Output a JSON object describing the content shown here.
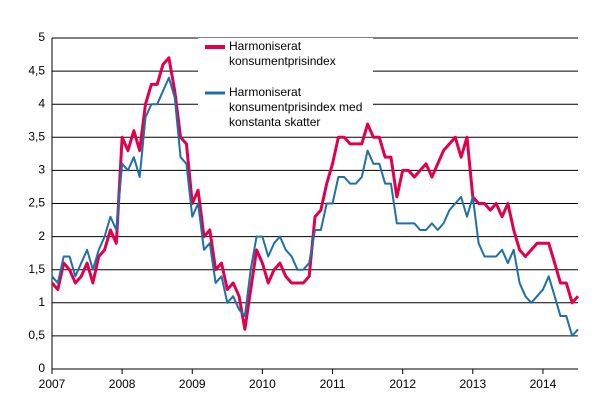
{
  "chart_data": {
    "type": "line",
    "x": [
      2007,
      2007.083,
      2007.167,
      2007.25,
      2007.333,
      2007.417,
      2007.5,
      2007.583,
      2007.667,
      2007.75,
      2007.833,
      2007.917,
      2008,
      2008.083,
      2008.167,
      2008.25,
      2008.333,
      2008.417,
      2008.5,
      2008.583,
      2008.667,
      2008.75,
      2008.833,
      2008.917,
      2009,
      2009.083,
      2009.167,
      2009.25,
      2009.333,
      2009.417,
      2009.5,
      2009.583,
      2009.667,
      2009.75,
      2009.833,
      2009.917,
      2010,
      2010.083,
      2010.167,
      2010.25,
      2010.333,
      2010.417,
      2010.5,
      2010.583,
      2010.667,
      2010.75,
      2010.833,
      2010.917,
      2011,
      2011.083,
      2011.167,
      2011.25,
      2011.333,
      2011.417,
      2011.5,
      2011.583,
      2011.667,
      2011.75,
      2011.833,
      2011.917,
      2012,
      2012.083,
      2012.167,
      2012.25,
      2012.333,
      2012.417,
      2012.5,
      2012.583,
      2012.667,
      2012.75,
      2012.833,
      2012.917,
      2013,
      2013.083,
      2013.167,
      2013.25,
      2013.333,
      2013.417,
      2013.5,
      2013.583,
      2013.667,
      2013.75,
      2013.833,
      2013.917,
      2014,
      2014.083,
      2014.167,
      2014.25,
      2014.333,
      2014.417,
      2014.5
    ],
    "series": [
      {
        "name": "Harmoniserat konsumentprisindex",
        "color": "#e0004d",
        "width": 3,
        "values": [
          1.3,
          1.2,
          1.6,
          1.5,
          1.3,
          1.4,
          1.6,
          1.3,
          1.7,
          1.8,
          2.1,
          1.9,
          3.5,
          3.3,
          3.6,
          3.3,
          4.0,
          4.3,
          4.3,
          4.6,
          4.7,
          4.2,
          3.5,
          3.4,
          2.5,
          2.7,
          2.0,
          2.1,
          1.5,
          1.6,
          1.2,
          1.3,
          1.1,
          0.6,
          1.2,
          1.8,
          1.6,
          1.3,
          1.5,
          1.6,
          1.4,
          1.3,
          1.3,
          1.3,
          1.4,
          2.3,
          2.4,
          2.8,
          3.1,
          3.5,
          3.5,
          3.4,
          3.4,
          3.4,
          3.7,
          3.5,
          3.5,
          3.2,
          3.2,
          2.6,
          3.0,
          3.0,
          2.9,
          3.0,
          3.1,
          2.9,
          3.1,
          3.3,
          3.4,
          3.5,
          3.2,
          3.5,
          2.6,
          2.5,
          2.5,
          2.4,
          2.5,
          2.3,
          2.5,
          2.1,
          1.8,
          1.7,
          1.8,
          1.9,
          1.9,
          1.9,
          1.6,
          1.3,
          1.3,
          1.0,
          1.1
        ]
      },
      {
        "name": "Harmoniserat konsumentprisindex med konstanta skatter",
        "color": "#1f6fa8",
        "width": 2,
        "values": [
          1.4,
          1.3,
          1.7,
          1.7,
          1.4,
          1.6,
          1.8,
          1.5,
          1.8,
          2.0,
          2.3,
          2.1,
          3.1,
          3.0,
          3.2,
          2.9,
          3.8,
          4.0,
          4.0,
          4.2,
          4.4,
          4.1,
          3.2,
          3.1,
          2.3,
          2.5,
          1.8,
          1.9,
          1.3,
          1.4,
          1.0,
          1.1,
          0.9,
          0.8,
          1.5,
          2.0,
          2.0,
          1.7,
          1.9,
          2.0,
          1.8,
          1.7,
          1.5,
          1.5,
          1.6,
          2.1,
          2.1,
          2.5,
          2.5,
          2.9,
          2.9,
          2.8,
          2.8,
          2.9,
          3.3,
          3.1,
          3.1,
          2.8,
          2.8,
          2.2,
          2.2,
          2.2,
          2.2,
          2.1,
          2.1,
          2.2,
          2.1,
          2.2,
          2.4,
          2.5,
          2.6,
          2.3,
          2.6,
          1.9,
          1.7,
          1.7,
          1.7,
          1.8,
          1.6,
          1.8,
          1.3,
          1.1,
          1.0,
          1.1,
          1.2,
          1.4,
          1.1,
          0.8,
          0.8,
          0.5,
          0.6
        ]
      }
    ],
    "xlim": [
      2007,
      2014.5
    ],
    "xticks": [
      2007,
      2008,
      2009,
      2010,
      2011,
      2012,
      2013,
      2014
    ],
    "ylim": [
      0,
      5
    ],
    "yticks": [
      0,
      {
        "value": 0.5,
        "label": "0,5"
      },
      1,
      {
        "value": 1.5,
        "label": "1,5"
      },
      2,
      {
        "value": 2.5,
        "label": "2,5"
      },
      3,
      {
        "value": 3.5,
        "label": "3,5"
      },
      4,
      {
        "value": 4.5,
        "label": "4,5"
      },
      5
    ],
    "grid": true,
    "legend": "top-center"
  }
}
